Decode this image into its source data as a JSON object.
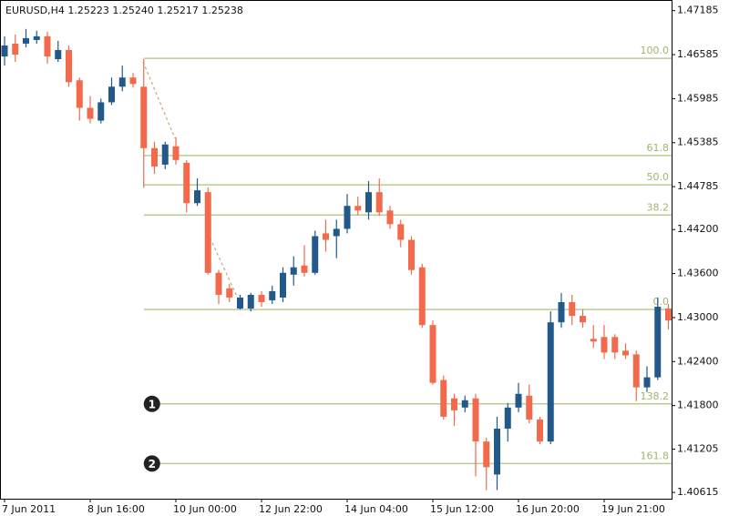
{
  "chart_data": {
    "type": "candlestick",
    "title": "EURUSD,H4  1.25223 1.25240 1.25217 1.25238",
    "categories": [
      "7 Jun 2011",
      null,
      null,
      null,
      null,
      null,
      null,
      null,
      "8 Jun 16:00",
      null,
      null,
      null,
      null,
      null,
      null,
      null,
      "10 Jun 00:00",
      null,
      null,
      null,
      null,
      null,
      null,
      null,
      "12 Jun 22:00",
      null,
      null,
      null,
      null,
      null,
      null,
      null,
      "14 Jun 04:00",
      null,
      null,
      null,
      null,
      null,
      null,
      null,
      "15 Jun 12:00",
      null,
      null,
      null,
      null,
      null,
      null,
      null,
      "16 Jun 20:00",
      null,
      null,
      null,
      null,
      null,
      null,
      null,
      "19 Jun 21:00",
      null,
      null,
      null,
      null,
      null,
      null
    ],
    "open": [
      1.4656,
      1.46735,
      1.46735,
      1.46785,
      1.46835,
      1.46523,
      1.46648,
      1.46235,
      1.4586,
      1.45685,
      1.45935,
      1.46148,
      1.46273,
      1.46148,
      1.4531,
      1.45085,
      1.45335,
      1.4511,
      1.4456,
      1.4471,
      1.4361,
      1.43398,
      1.43123,
      1.43123,
      1.4331,
      1.43235,
      1.43273,
      1.43585,
      1.4371,
      1.4361,
      1.44148,
      1.4411,
      1.4421,
      1.44523,
      1.44435,
      1.4471,
      1.4446,
      1.44273,
      1.4406,
      1.43685,
      1.42898,
      1.42148,
      1.41898,
      1.41773,
      1.41898,
      1.4131,
      1.4086,
      1.41485,
      1.41773,
      1.41935,
      1.4161,
      1.4131,
      1.42935,
      1.4321,
      1.43023,
      1.4271,
      1.42735,
      1.42735,
      1.42548,
      1.42498,
      1.42048,
      1.42185,
      1.43123
    ],
    "high": [
      1.46835,
      1.4686,
      1.46935,
      1.4691,
      1.46898,
      1.46773,
      1.4671,
      1.46273,
      1.46023,
      1.45985,
      1.46273,
      1.46435,
      1.46335,
      1.46523,
      1.45398,
      1.45398,
      1.4546,
      1.45148,
      1.44898,
      1.44773,
      1.43648,
      1.4346,
      1.4331,
      1.43335,
      1.4336,
      1.43435,
      1.43685,
      1.43835,
      1.43985,
      1.44185,
      1.44335,
      1.44335,
      1.44685,
      1.44648,
      1.4486,
      1.44898,
      1.44523,
      1.44335,
      1.4411,
      1.43735,
      1.4296,
      1.4221,
      1.4196,
      1.41935,
      1.4196,
      1.4136,
      1.41648,
      1.41835,
      1.4211,
      1.42085,
      1.41648,
      1.43085,
      1.43335,
      1.4331,
      1.4311,
      1.42898,
      1.42898,
      1.42773,
      1.42648,
      1.42548,
      1.42335,
      1.43273,
      1.43185
    ],
    "low": [
      1.46435,
      1.46485,
      1.46685,
      1.46735,
      1.4646,
      1.46485,
      1.46148,
      1.45685,
      1.45648,
      1.45648,
      1.45898,
      1.46085,
      1.46135,
      1.44773,
      1.4496,
      1.45023,
      1.45085,
      1.44435,
      1.44523,
      1.43585,
      1.43185,
      1.4321,
      1.4311,
      1.43085,
      1.43148,
      1.43185,
      1.4321,
      1.43435,
      1.4356,
      1.43585,
      1.43898,
      1.4381,
      1.44148,
      1.44398,
      1.44335,
      1.44385,
      1.4421,
      1.4396,
      1.43585,
      1.4286,
      1.42085,
      1.4161,
      1.41523,
      1.4171,
      1.40835,
      1.40648,
      1.40648,
      1.4131,
      1.4171,
      1.4156,
      1.41273,
      1.41273,
      1.4286,
      1.42898,
      1.4286,
      1.42585,
      1.42435,
      1.42435,
      1.42435,
      1.4186,
      1.41985,
      1.42148,
      1.42835
    ],
    "close": [
      1.4671,
      1.46585,
      1.4681,
      1.46835,
      1.4656,
      1.46648,
      1.4621,
      1.4586,
      1.4571,
      1.45935,
      1.46148,
      1.46273,
      1.46185,
      1.4531,
      1.4506,
      1.4536,
      1.45148,
      1.4456,
      1.44735,
      1.4361,
      1.4331,
      1.43273,
      1.43273,
      1.4331,
      1.4321,
      1.4336,
      1.4361,
      1.43685,
      1.4361,
      1.4411,
      1.4406,
      1.4421,
      1.44523,
      1.4446,
      1.4471,
      1.44435,
      1.44273,
      1.4406,
      1.43648,
      1.42898,
      1.4211,
      1.41648,
      1.41735,
      1.41873,
      1.4131,
      1.4096,
      1.41485,
      1.41773,
      1.4196,
      1.4161,
      1.4131,
      1.42935,
      1.4321,
      1.43023,
      1.42935,
      1.42673,
      1.42523,
      1.42523,
      1.42485,
      1.42048,
      1.42185,
      1.43148,
      1.4296
    ],
    "up_color": "#22598a",
    "down_color": "#f26a4b",
    "ylim": [
      1.4053,
      1.4733
    ],
    "yticks": [
      1.47185,
      1.46585,
      1.45985,
      1.45385,
      1.44785,
      {
        "value": 1.442,
        "label": "1.44200"
      },
      {
        "value": 1.436,
        "label": "1.43600"
      },
      {
        "value": 1.43,
        "label": "1.43000"
      },
      {
        "value": 1.424,
        "label": "1.42400"
      },
      {
        "value": 1.418,
        "label": "1.41800"
      },
      1.41205,
      1.40615
    ],
    "fib_color": "#b9cc93",
    "fib_levels": [
      {
        "label": "100.0",
        "value": 1.46535
      },
      {
        "label": "61.8",
        "value": 1.4521
      },
      {
        "label": "50.0",
        "value": 1.4481
      },
      {
        "label": "38.2",
        "value": 1.44398
      },
      {
        "label": "0.0",
        "value": 1.4311
      },
      {
        "label": "138.2",
        "value": 1.41823
      },
      {
        "label": "161.8",
        "value": 1.4101
      }
    ],
    "annotations": [
      "1",
      "2"
    ]
  }
}
